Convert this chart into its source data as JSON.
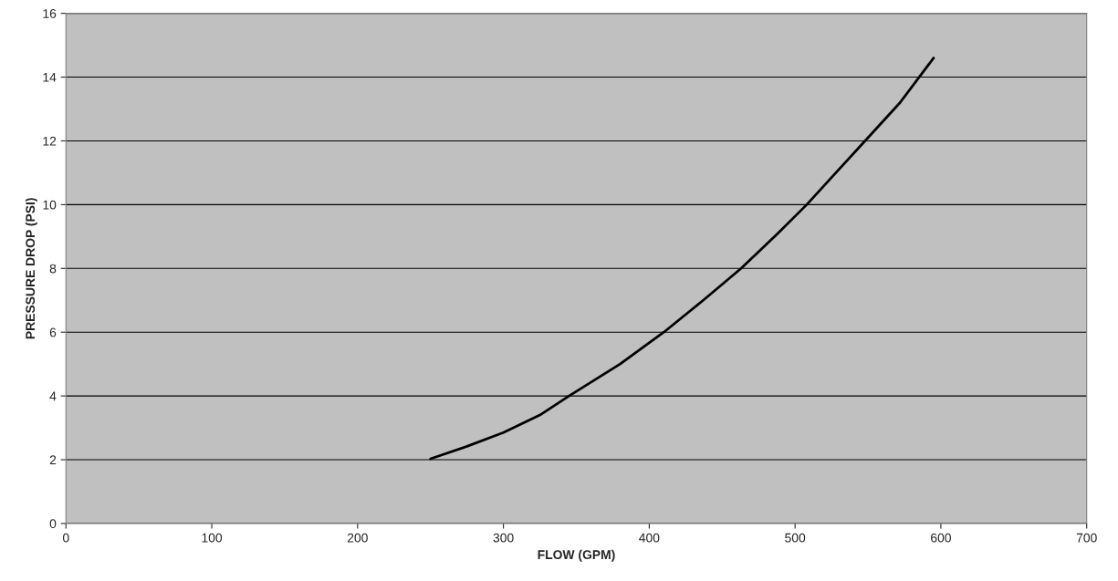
{
  "chart_data": {
    "type": "line",
    "xlabel": "FLOW (GPM)",
    "ylabel": "PRESSURE DROP (PSI)",
    "x": [
      250,
      275,
      300,
      325,
      345,
      380,
      410,
      437,
      463,
      486,
      508,
      528,
      548,
      572,
      595
    ],
    "series": [
      {
        "color": "#000000",
        "values": [
          2.03,
          2.42,
          2.85,
          3.4,
          4.0,
          5.0,
          6.0,
          7.0,
          8.0,
          9.0,
          10.0,
          11.0,
          12.0,
          13.2,
          14.6
        ]
      }
    ],
    "xlim": [
      0,
      700
    ],
    "xticks": [
      0,
      100,
      200,
      300,
      400,
      500,
      600,
      700
    ],
    "ylim": [
      0,
      16
    ],
    "yticks": [
      0,
      2,
      4,
      6,
      8,
      10,
      12,
      14,
      16
    ],
    "grid": "y",
    "marker": "none",
    "line_style": "solid"
  }
}
